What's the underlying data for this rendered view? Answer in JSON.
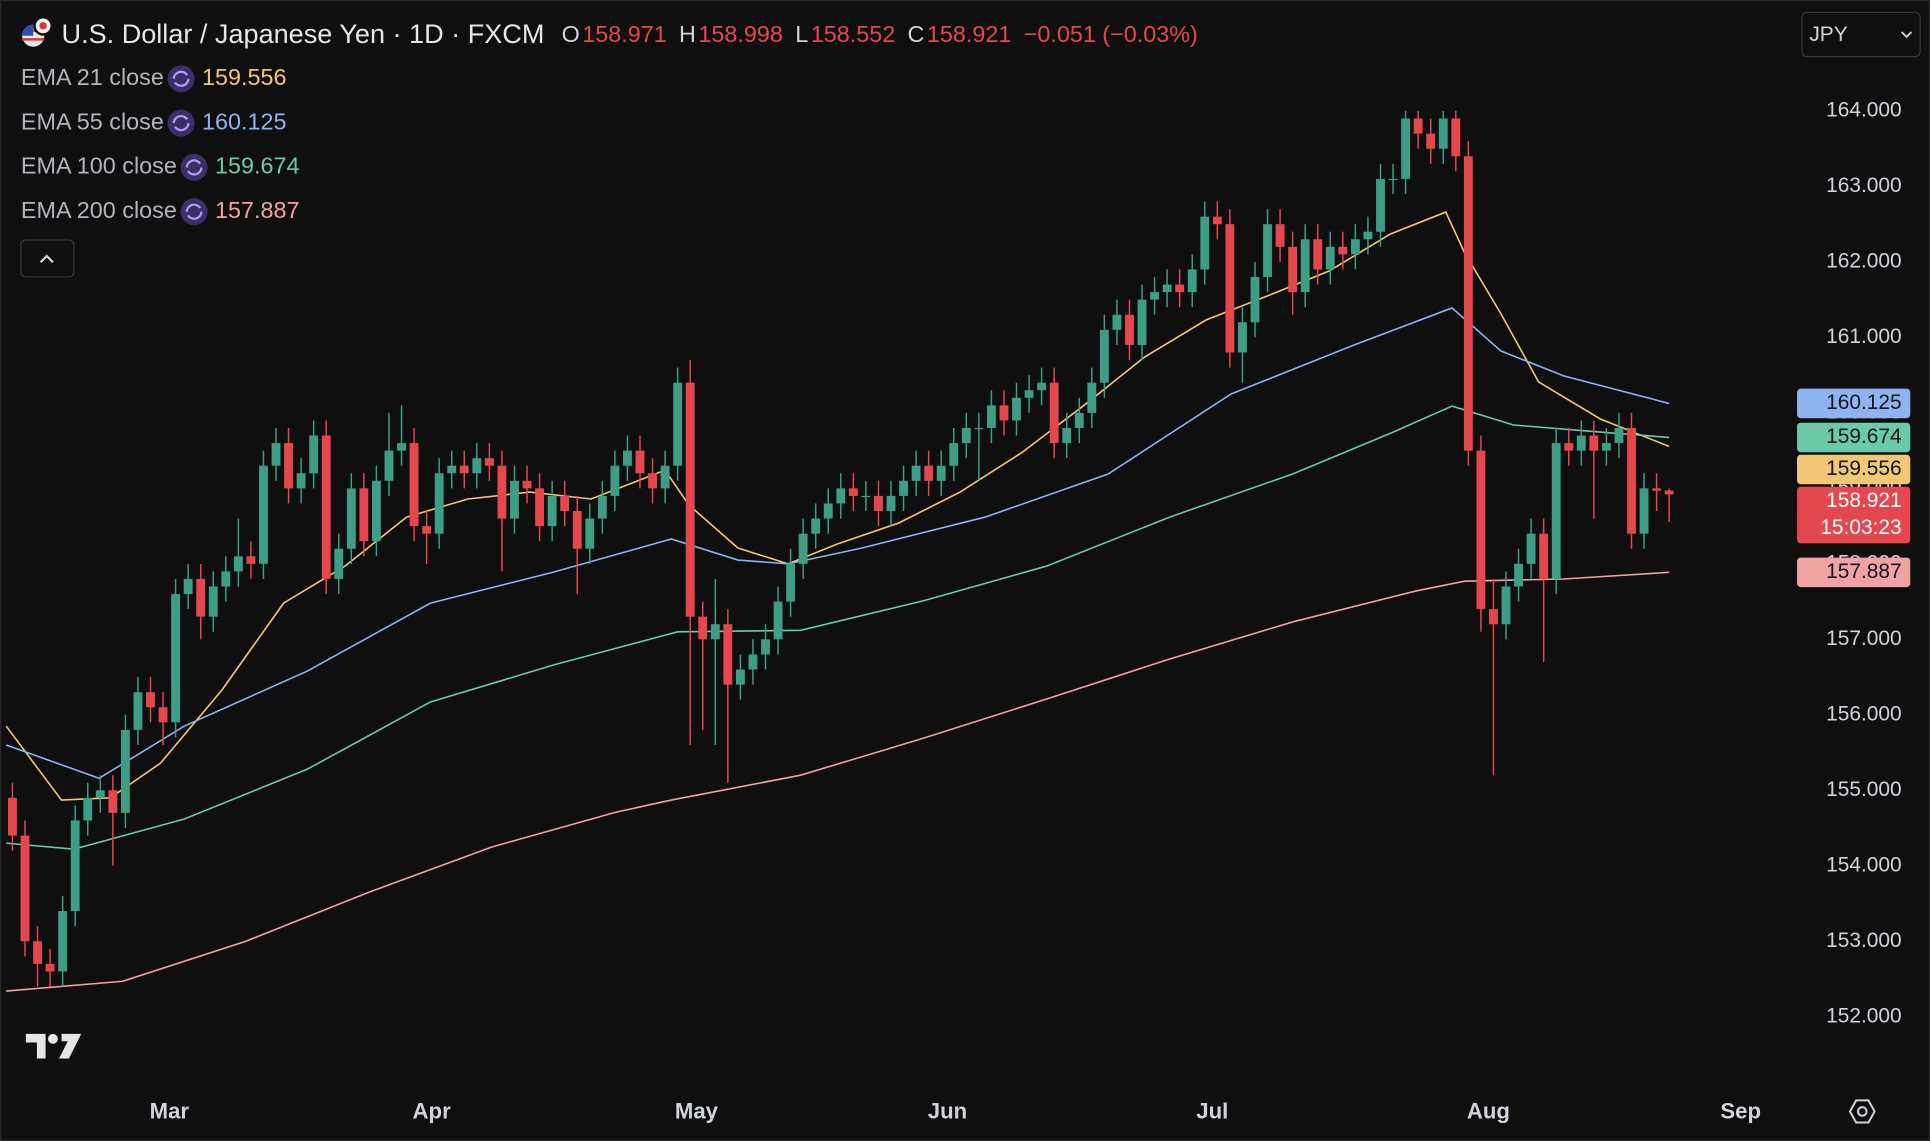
{
  "header": {
    "title": "U.S. Dollar / Japanese Yen · 1D · FXCM",
    "ohlc_labels": [
      "O",
      "H",
      "L",
      "C"
    ],
    "change": "−0.051 (−0.03%)",
    "currency": "JPY"
  },
  "chart_data": {
    "type": "candlestick",
    "up_color": "#3e9e85",
    "down_color": "#e5474f",
    "open": [
      154.9,
      154.4,
      153.0,
      152.7,
      152.6,
      153.4,
      154.6,
      154.9,
      155.0,
      154.7,
      155.8,
      156.3,
      156.1,
      155.9,
      157.6,
      157.8,
      157.3,
      157.7,
      157.9,
      158.1,
      158.0,
      159.3,
      159.6,
      159.0,
      159.2,
      159.7,
      157.8,
      158.2,
      159.0,
      158.3,
      159.1,
      159.5,
      159.6,
      158.5,
      158.4,
      159.2,
      159.3,
      159.2,
      159.4,
      159.3,
      158.6,
      159.1,
      159.0,
      158.5,
      158.9,
      158.7,
      158.2,
      158.6,
      158.9,
      159.3,
      159.5,
      159.2,
      159.0,
      159.3,
      160.4,
      157.3,
      157.0,
      157.2,
      156.4,
      156.6,
      156.8,
      157.0,
      157.5,
      158.0,
      158.4,
      158.6,
      158.8,
      159.0,
      158.9,
      158.9,
      158.7,
      158.9,
      159.1,
      159.3,
      159.1,
      159.3,
      159.6,
      159.8,
      159.8,
      160.1,
      159.9,
      160.2,
      160.3,
      160.4,
      159.6,
      159.8,
      160.0,
      160.4,
      161.1,
      161.3,
      160.9,
      161.5,
      161.6,
      161.7,
      161.6,
      161.9,
      162.6,
      162.5,
      160.8,
      161.2,
      161.8,
      162.5,
      162.2,
      161.6,
      162.3,
      161.9,
      162.2,
      162.1,
      162.3,
      162.4,
      163.1,
      163.1,
      163.9,
      163.7,
      163.5,
      163.9,
      163.4,
      159.5,
      157.4,
      157.2,
      157.7,
      158.0,
      158.4,
      157.8,
      159.6,
      159.5,
      159.7,
      159.5,
      159.6,
      159.8,
      158.4,
      159.0,
      158.971
    ],
    "high": [
      155.1,
      154.6,
      153.2,
      152.9,
      153.6,
      154.8,
      155.1,
      155.2,
      155.2,
      156.0,
      156.5,
      156.5,
      156.3,
      157.8,
      158.0,
      158.0,
      157.9,
      158.1,
      158.6,
      158.3,
      159.5,
      159.8,
      159.8,
      159.4,
      159.9,
      159.9,
      158.4,
      159.2,
      159.2,
      159.3,
      160.0,
      160.1,
      159.8,
      158.7,
      159.4,
      159.5,
      159.5,
      159.6,
      159.6,
      159.5,
      159.3,
      159.3,
      159.2,
      159.1,
      159.1,
      158.9,
      158.8,
      159.1,
      159.5,
      159.7,
      159.7,
      159.4,
      159.5,
      160.6,
      160.7,
      157.5,
      157.8,
      157.4,
      156.8,
      157.0,
      157.2,
      157.7,
      158.2,
      158.6,
      158.8,
      159.0,
      159.2,
      159.2,
      159.1,
      159.1,
      159.1,
      159.3,
      159.5,
      159.5,
      159.5,
      159.8,
      160.0,
      160.0,
      160.3,
      160.3,
      160.4,
      160.5,
      160.6,
      160.6,
      160.0,
      160.2,
      160.6,
      161.3,
      161.5,
      161.5,
      161.7,
      161.8,
      161.9,
      161.9,
      162.1,
      162.8,
      162.8,
      162.7,
      161.4,
      162.0,
      162.7,
      162.7,
      162.4,
      162.5,
      162.5,
      162.4,
      162.4,
      162.5,
      162.6,
      163.3,
      163.3,
      164.0,
      164.0,
      163.9,
      164.0,
      164.0,
      163.6,
      159.7,
      157.8,
      157.9,
      158.2,
      158.6,
      158.6,
      159.8,
      159.8,
      159.9,
      159.9,
      159.8,
      160.0,
      160.0,
      159.2,
      159.2,
      158.998
    ],
    "low": [
      154.2,
      152.8,
      152.4,
      152.4,
      152.4,
      153.2,
      154.4,
      154.7,
      154.0,
      154.5,
      155.6,
      155.9,
      155.6,
      155.7,
      157.4,
      157.0,
      157.1,
      157.5,
      157.7,
      157.8,
      157.8,
      159.1,
      158.8,
      158.8,
      159.0,
      157.6,
      157.6,
      158.0,
      158.1,
      158.1,
      158.9,
      159.3,
      158.3,
      158.0,
      158.2,
      159.0,
      159.0,
      159.0,
      159.1,
      157.9,
      158.4,
      158.8,
      158.3,
      158.3,
      158.5,
      157.6,
      158.0,
      158.4,
      158.7,
      159.1,
      159.0,
      158.8,
      158.8,
      159.1,
      155.6,
      155.8,
      155.6,
      155.1,
      156.2,
      156.4,
      156.6,
      156.8,
      157.3,
      157.8,
      158.2,
      158.4,
      158.6,
      158.7,
      158.7,
      158.5,
      158.5,
      158.7,
      158.9,
      158.9,
      158.9,
      159.1,
      159.4,
      159.1,
      159.6,
      159.7,
      159.7,
      160.0,
      160.1,
      159.4,
      159.4,
      159.6,
      159.8,
      160.2,
      160.9,
      160.7,
      160.7,
      161.3,
      161.4,
      161.4,
      161.4,
      161.7,
      162.3,
      160.6,
      160.4,
      161.0,
      161.6,
      162.0,
      161.3,
      161.4,
      161.7,
      161.7,
      161.9,
      161.9,
      162.1,
      162.2,
      162.9,
      162.9,
      163.5,
      163.3,
      163.3,
      163.2,
      159.3,
      157.1,
      155.2,
      157.0,
      157.5,
      157.8,
      156.7,
      157.6,
      159.3,
      159.3,
      158.6,
      159.3,
      159.4,
      158.2,
      158.2,
      158.7,
      158.552
    ],
    "close": [
      154.4,
      153.0,
      152.7,
      152.6,
      153.4,
      154.6,
      154.9,
      155.0,
      154.7,
      155.8,
      156.3,
      156.1,
      155.9,
      157.6,
      157.8,
      157.3,
      157.7,
      157.9,
      158.1,
      158.0,
      159.3,
      159.6,
      159.0,
      159.2,
      159.7,
      157.8,
      158.2,
      159.0,
      158.3,
      159.1,
      159.5,
      159.6,
      158.5,
      158.4,
      159.2,
      159.3,
      159.2,
      159.4,
      159.3,
      158.6,
      159.1,
      159.0,
      158.5,
      158.9,
      158.7,
      158.2,
      158.6,
      158.9,
      159.3,
      159.5,
      159.2,
      159.0,
      159.3,
      160.4,
      157.3,
      157.0,
      157.2,
      156.4,
      156.6,
      156.8,
      157.0,
      157.5,
      158.0,
      158.4,
      158.6,
      158.8,
      159.0,
      158.9,
      158.9,
      158.7,
      158.9,
      159.1,
      159.3,
      159.1,
      159.3,
      159.6,
      159.8,
      159.8,
      160.1,
      159.9,
      160.2,
      160.3,
      160.4,
      159.6,
      159.8,
      160.0,
      160.4,
      161.1,
      161.3,
      160.9,
      161.5,
      161.6,
      161.7,
      161.6,
      161.9,
      162.6,
      162.5,
      160.8,
      161.2,
      161.8,
      162.5,
      162.2,
      161.6,
      162.3,
      161.9,
      162.2,
      162.1,
      162.3,
      162.4,
      163.1,
      163.1,
      163.9,
      163.7,
      163.5,
      163.9,
      163.4,
      159.5,
      157.4,
      157.2,
      157.7,
      158.0,
      158.4,
      157.8,
      159.6,
      159.5,
      159.7,
      159.5,
      159.6,
      159.8,
      158.4,
      159.0,
      158.97,
      158.921
    ],
    "countdown": "15:03:23",
    "series": [
      {
        "name": "EMA 21 close",
        "color": "#f2c877",
        "x": [
          -0.5,
          3.9,
          7.8,
          11.8,
          16.7,
          21.6,
          26.5,
          31.4,
          36.3,
          41.2,
          46.1,
          52.0,
          53.9,
          57.8,
          61.8,
          65.7,
          70.6,
          75.5,
          80.4,
          85.3,
          90.2,
          95.1,
          100,
          104.9,
          109.8,
          114.2,
          115.7,
          118.6,
          121.6,
          126.5,
          132
        ],
        "values": [
          155.85,
          154.87,
          154.9,
          155.36,
          156.33,
          157.48,
          157.97,
          158.62,
          158.86,
          158.95,
          158.86,
          159.24,
          158.78,
          158.21,
          158.0,
          158.26,
          158.54,
          158.95,
          159.47,
          160.09,
          160.74,
          161.23,
          161.55,
          161.88,
          162.37,
          162.66,
          162.12,
          161.31,
          160.41,
          159.92,
          159.556
        ]
      },
      {
        "name": "EMA 55 close",
        "color": "#8fb3ef",
        "x": [
          -0.5,
          6.9,
          13.7,
          23.5,
          33.3,
          43.1,
          52.5,
          57.8,
          61.8,
          67.7,
          77.5,
          87.3,
          97.1,
          106.9,
          114.7,
          118.6,
          123.6,
          132
        ],
        "values": [
          155.6,
          155.16,
          155.85,
          156.58,
          157.48,
          157.89,
          158.33,
          158.05,
          158.0,
          158.21,
          158.62,
          159.19,
          160.25,
          160.9,
          161.39,
          160.82,
          160.49,
          160.125
        ]
      },
      {
        "name": "EMA 100 close",
        "color": "#6ccaa9",
        "x": [
          -0.5,
          4.9,
          13.7,
          23.5,
          33.3,
          43.1,
          53,
          62.8,
          72.6,
          82.4,
          92.2,
          102,
          109.8,
          114.7,
          119.6,
          125.5,
          132
        ],
        "values": [
          154.3,
          154.22,
          154.62,
          155.28,
          156.17,
          156.66,
          157.1,
          157.12,
          157.51,
          157.97,
          158.62,
          159.19,
          159.73,
          160.09,
          159.84,
          159.76,
          159.674
        ]
      },
      {
        "name": "EMA 200 close",
        "color": "#f0a3a3",
        "x": [
          -0.5,
          8.8,
          18.6,
          28.4,
          38.2,
          48.1,
          52.5,
          62.8,
          72.6,
          82.4,
          92.2,
          102,
          111.8,
          115.7,
          123.6,
          132
        ],
        "values": [
          152.34,
          152.47,
          153.0,
          153.65,
          154.25,
          154.71,
          154.87,
          155.2,
          155.69,
          156.21,
          156.74,
          157.23,
          157.64,
          157.77,
          157.8,
          157.887
        ]
      }
    ],
    "xlim": [
      -0.5,
      141.7
    ],
    "xticks": [
      {
        "value": 12.5,
        "label": "Mar"
      },
      {
        "value": 33.4,
        "label": "Apr"
      },
      {
        "value": 54.5,
        "label": "May"
      },
      {
        "value": 74.5,
        "label": "Jun"
      },
      {
        "value": 95.6,
        "label": "Jul"
      },
      {
        "value": 117.6,
        "label": "Aug"
      },
      {
        "value": 137.7,
        "label": "Sep"
      }
    ],
    "ylim": [
      151.12,
      165.47
    ],
    "yticks": [
      {
        "value": 152,
        "label": "152.000"
      },
      {
        "value": 153,
        "label": "153.000"
      },
      {
        "value": 154,
        "label": "154.000"
      },
      {
        "value": 155,
        "label": "155.000"
      },
      {
        "value": 156,
        "label": "156.000"
      },
      {
        "value": 157,
        "label": "157.000"
      },
      {
        "value": 158,
        "label": "158.000"
      },
      {
        "value": 159,
        "label": "159.000"
      },
      {
        "value": 160,
        "label": "160.000"
      },
      {
        "value": 161,
        "label": "161.000"
      },
      {
        "value": 162,
        "label": "162.000"
      },
      {
        "value": 163,
        "label": "163.000"
      },
      {
        "value": 164,
        "label": "164.000"
      }
    ]
  }
}
